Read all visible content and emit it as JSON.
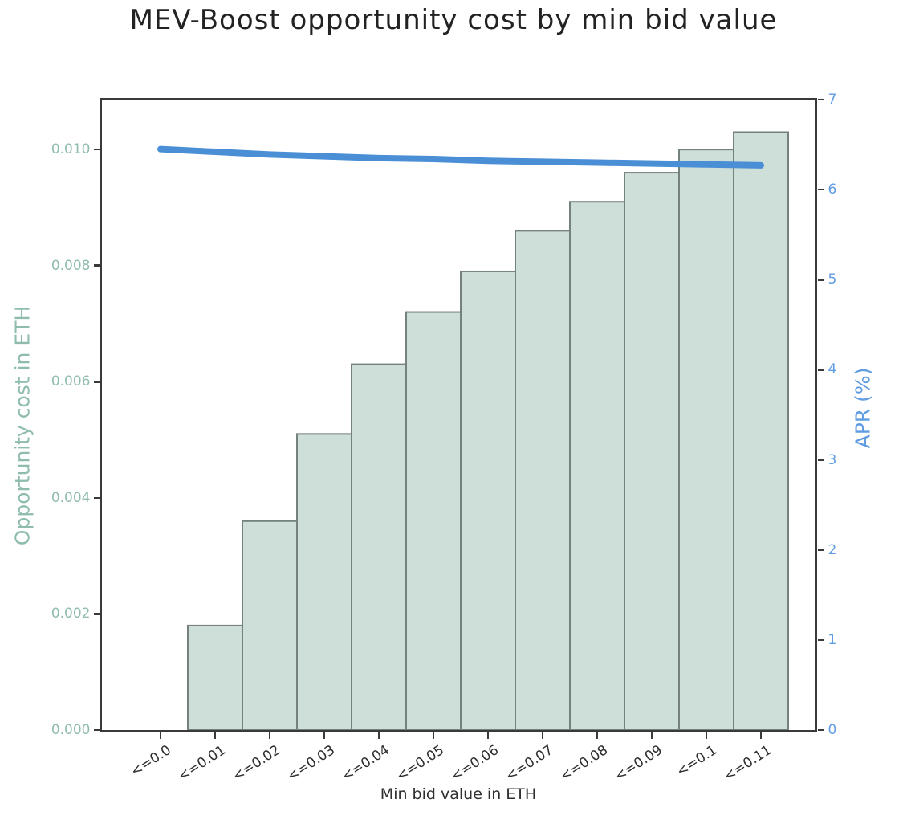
{
  "chart_data": {
    "type": "bar",
    "title": "MEV-Boost opportunity cost by min bid value",
    "xlabel": "Min bid value in ETH",
    "ylabel_left": "Opportunity cost in ETH",
    "ylabel_right": "APR (%)",
    "categories": [
      "<=0.0",
      "<=0.01",
      "<=0.02",
      "<=0.03",
      "<=0.04",
      "<=0.05",
      "<=0.06",
      "<=0.07",
      "<=0.08",
      "<=0.09",
      "<=0.1",
      "<=0.11"
    ],
    "series": [
      {
        "name": "Opportunity cost in ETH",
        "type": "bar",
        "axis": "left",
        "values": [
          0.0,
          0.0018,
          0.0036,
          0.0051,
          0.0063,
          0.0072,
          0.0079,
          0.0086,
          0.0091,
          0.0096,
          0.01,
          0.0103
        ]
      },
      {
        "name": "APR (%)",
        "type": "line",
        "axis": "right",
        "values": [
          6.45,
          6.42,
          6.39,
          6.37,
          6.35,
          6.34,
          6.32,
          6.31,
          6.3,
          6.29,
          6.28,
          6.27
        ]
      }
    ],
    "ylim_left": [
      0,
      0.01086
    ],
    "ylim_right": [
      0,
      7
    ],
    "yticks_left": [
      "0.000",
      "0.002",
      "0.004",
      "0.006",
      "0.008",
      "0.010"
    ],
    "yticks_right": [
      "0",
      "1",
      "2",
      "3",
      "4",
      "5",
      "6",
      "7"
    ],
    "grid": false,
    "legend": "none",
    "colors": {
      "bar_fill": "#cddfd8",
      "bar_edge": "#75827c",
      "line": "#4a8ed6",
      "left_axis_text": "#8fbcab",
      "right_axis_text": "#5f9ce2",
      "spine": "#3a3a3a",
      "title_text": "#222222",
      "x_text": "#2f2f2f"
    }
  }
}
